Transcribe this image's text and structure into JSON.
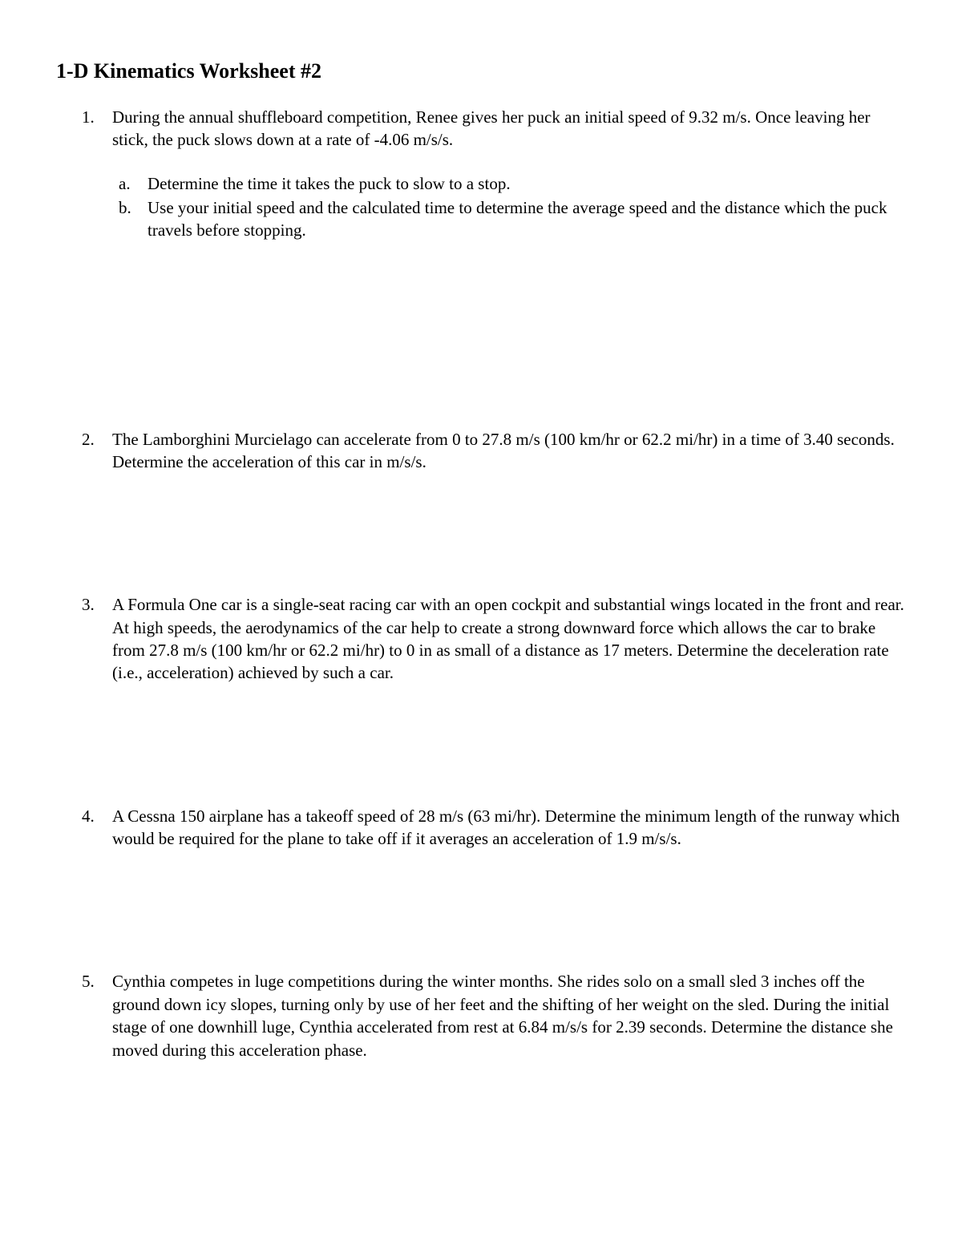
{
  "title": "1-D Kinematics Worksheet #2",
  "questions": [
    {
      "num": "1.",
      "text": "During the annual shuffleboard competition, Renee gives her puck an initial speed of 9.32 m/s. Once leaving her stick, the puck slows down at a rate of -4.06 m/s/s.",
      "sub": [
        {
          "num": "a.",
          "text": "Determine the time it takes the puck to slow to a stop."
        },
        {
          "num": "b.",
          "text": "Use your initial speed and the calculated time to determine the average speed and the distance which the puck travels before stopping."
        }
      ]
    },
    {
      "num": "2.",
      "text": "The Lamborghini Murcielago can accelerate from 0 to 27.8 m/s (100 km/hr or 62.2 mi/hr) in a time of 3.40 seconds. Determine the acceleration of this car in m/s/s."
    },
    {
      "num": "3.",
      "text": "A Formula One car is a single-seat racing car with an open cockpit and substantial wings located in the front and rear. At high speeds, the aerodynamics of the car help to create a strong downward force which allows the car to brake from 27.8 m/s (100 km/hr or 62.2 mi/hr) to 0 in as small of a distance as 17 meters. Determine the deceleration rate (i.e., acceleration) achieved by such a car."
    },
    {
      "num": "4.",
      "text": "A Cessna 150 airplane has a takeoff speed of 28 m/s (63 mi/hr). Determine the minimum length of the runway which would be required for the plane to take off if it averages an acceleration of 1.9 m/s/s."
    },
    {
      "num": "5.",
      "text": "Cynthia competes in luge competitions during the winter months. She rides solo on a small sled 3 inches off the ground down icy slopes, turning only by use of her feet and the shifting of her weight on the sled. During the initial stage of one downhill luge, Cynthia accelerated from rest at 6.84 m/s/s for 2.39 seconds. Determine the distance she moved during this acceleration phase."
    }
  ]
}
